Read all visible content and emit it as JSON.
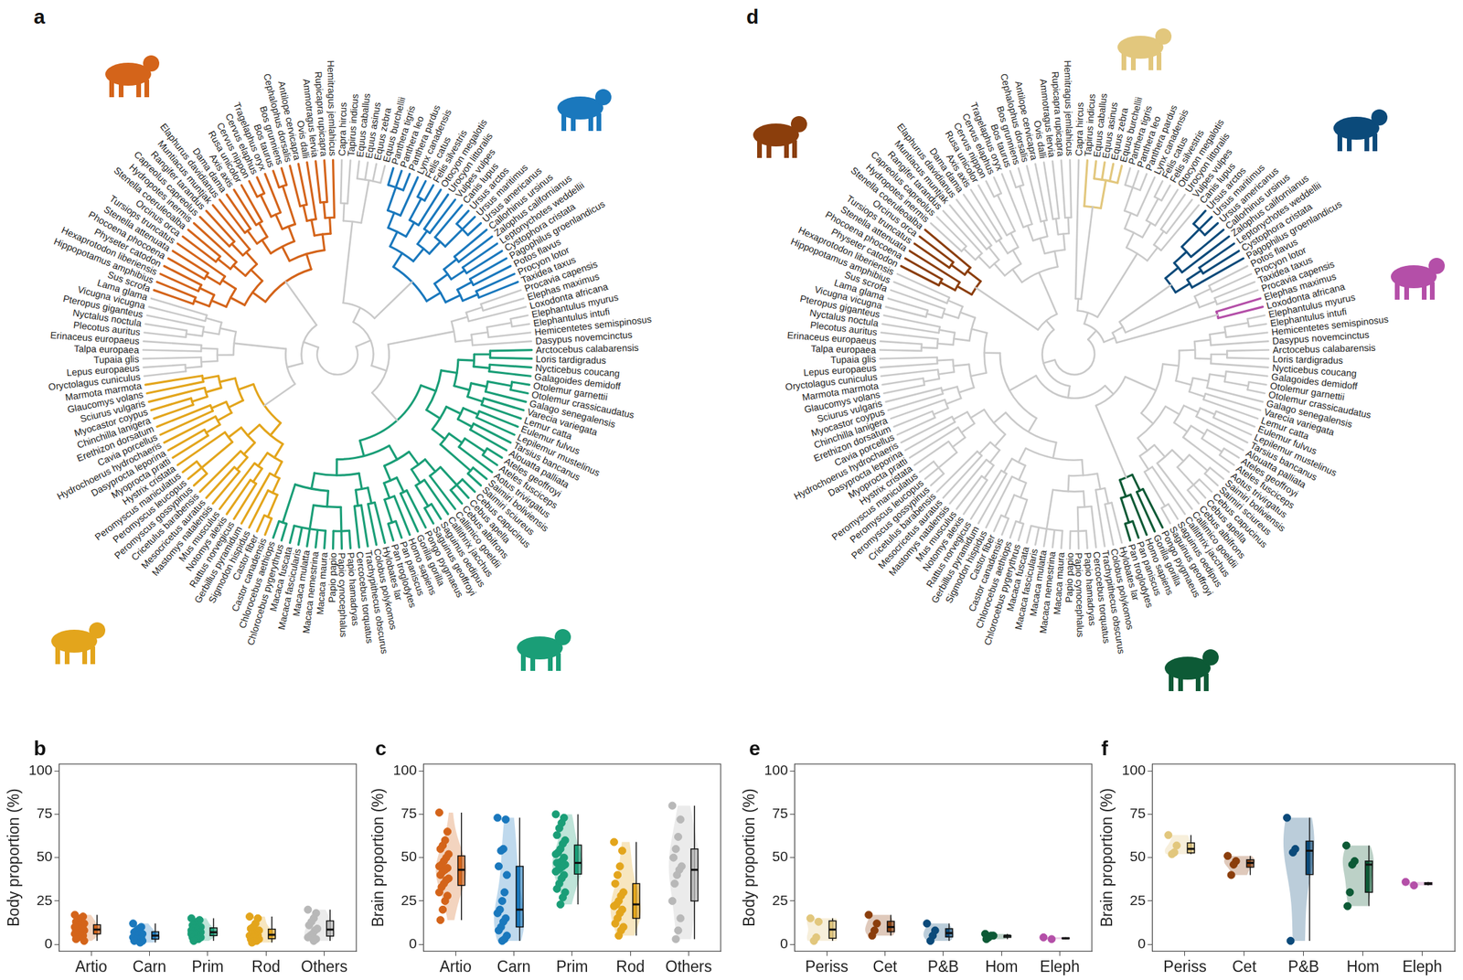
{
  "tree": {
    "species": [
      "Capra hircus",
      "Tapirus indicus",
      "Equus caballus",
      "Equus asinus",
      "Equus zebra",
      "Equus burchellii",
      "Panthera tigris",
      "Panthera leo",
      "Panthera pardus",
      "Lynx canadensis",
      "Felis catus",
      "Felis silvestris",
      "Otocyon megalotis",
      "Urocyon littoralis",
      "Vulpes vulpes",
      "Canis lupus",
      "Ursus arctos",
      "Ursus maritimus",
      "Ursus americanus",
      "Callorhinus ursinus",
      "Zalophus californianus",
      "Leptonychotes weddellii",
      "Cystophora cristata",
      "Pagophilus groenlandicus",
      "Potos flavus",
      "Procyon lotor",
      "Taxidea taxus",
      "Procavia capensis",
      "Elephas maximus",
      "Loxodonta africana",
      "Elephantulus myurus",
      "Elephantulus intufi",
      "Hemicentetes semispinosus",
      "Dasypus novemcinctus",
      "Arctocebus calabarensis",
      "Loris tardigradus",
      "Nycticebus coucang",
      "Galagoides demidoff",
      "Otolemur garnettii",
      "Otolemur crassicaudatus",
      "Galago senegalensis",
      "Varecia variegata",
      "Lemur catta",
      "Eulemur fulvus",
      "Lepilemur mustelinus",
      "Tarsius bancanus",
      "Alouatta palliata",
      "Ateles geoffroyi",
      "Ateles fusciceps",
      "Aotus trivirgatus",
      "Saimiri boliviensis",
      "Saimiri sciureus",
      "Cebus capucinus",
      "Cebus apella",
      "Cebus albifrons",
      "Callimico goeldii",
      "Callithrix jacchus",
      "Saguinus oedipus",
      "Saguinus geoffroyi",
      "Pongo pygmaeus",
      "Gorilla gorilla",
      "Homo sapiens",
      "Pan paniscus",
      "Pan troglodytes",
      "Hylobates lar",
      "Colobus polykomos",
      "Trachypithecus obscurus",
      "Cercocebus torquatus",
      "Papio hamadryas",
      "Papio cynocephalus",
      "Papio papio",
      "Macaca maura",
      "Macaca nemestrina",
      "Macaca mulatta",
      "Macaca fascicularis",
      "Macaca fuscata",
      "Chlorocebus pygerythrus",
      "Chlorocebus aethiops",
      "Castor canadensis",
      "Castor fiber",
      "Sigmodon hispidus",
      "Gerbillus pyramidum",
      "Rattus norvegicus",
      "Notomys alexis",
      "Mus musculus",
      "Mastomys natalensis",
      "Mesocricetus auratus",
      "Cricetulus barabensis",
      "Peromyscus gossypinus",
      "Peromyscus leucopus",
      "Peromyscus maniculatus",
      "Hystrix cristata",
      "Myoprocta pratti",
      "Dasyprocta leporina",
      "Hydrochoerus hydrochaeris",
      "Cavia porcellus",
      "Erethizon dorsatum",
      "Chinchilla lanigera",
      "Myocastor coypus",
      "Sciurus vulgaris",
      "Glaucomys volans",
      "Marmota marmota",
      "Oryctolagus cuniculus",
      "Lepus europaeus",
      "Tupaia glis",
      "Talpa europaea",
      "Erinaceus europaeus",
      "Plecotus auritus",
      "Nyctalus noctula",
      "Pteropus giganteus",
      "Vicugna vicugna",
      "Lama glama",
      "Sus scrofa",
      "Hippopotamus amphibius",
      "Hexaprotodon liberiensis",
      "Physeter catodon",
      "Phocoena phocoena",
      "Stenella attenuata",
      "Tursiops truncatus",
      "Orcinus orca",
      "Stenella coeruleoalba",
      "Hydropotes inermis",
      "Capreolus capreolus",
      "Rangifer tarandus",
      "Muntiacus muntjak",
      "Elaphurus davidianus",
      "Dama dama",
      "Axis axis",
      "Rusa unicolor",
      "Cervus nippon",
      "Cervus elaphus",
      "Tragelaphus oryx",
      "Bos taurus",
      "Bos grunniens",
      "Cephalophus dorsalis",
      "Antilope cervicapra",
      "Ovis dalli",
      "Ammotragus lervia",
      "Rupicapra rupicapra",
      "Hemitragus jemlahicus"
    ]
  },
  "tree_panels": [
    {
      "panel_label": "a",
      "clades": [
        {
          "color": "#d4641a",
          "from": "Sus scrofa",
          "to": "Hemitragus jemlahicus"
        },
        {
          "color": "#1a78bd",
          "from": "Panthera tigris",
          "to": "Taxidea taxus"
        },
        {
          "color": "#1a9e77",
          "from": "Arctocebus calabarensis",
          "to": "Chlorocebus aethiops"
        },
        {
          "color": "#e3a51c",
          "from": "Castor canadensis",
          "to": "Marmota marmota"
        }
      ]
    },
    {
      "panel_label": "d",
      "clades": [
        {
          "color": "#e2c77d",
          "from": "Tapirus indicus",
          "to": "Equus burchellii"
        },
        {
          "color": "#8b3e0c",
          "from": "Physeter catodon",
          "to": "Stenella coeruleoalba"
        },
        {
          "color": "#0b4a7a",
          "from": "Ursus arctos",
          "to": "Pagophilus groenlandicus"
        },
        {
          "color": "#0d5a36",
          "from": "Pongo pygmaeus",
          "to": "Pan troglodytes"
        },
        {
          "color": "#b44fa8",
          "from": "Elephas maximus",
          "to": "Loxodonta africana"
        }
      ]
    }
  ],
  "chart_data": [
    {
      "type": "box",
      "panel_label": "b",
      "ylabel": "Body proportion (%)",
      "categories": [
        "Artio",
        "Carn",
        "Prim",
        "Rod",
        "Others"
      ],
      "colors": [
        "#d4641a",
        "#1a78bd",
        "#1a9e77",
        "#e3a51c",
        "#b8b8b8"
      ],
      "values": [
        [
          17,
          16,
          15,
          14,
          13,
          12,
          11,
          11,
          10,
          10,
          9,
          9,
          8,
          8,
          8,
          7,
          7,
          6,
          6,
          5,
          5,
          4,
          3,
          2
        ],
        [
          12,
          10,
          9,
          8,
          7,
          6,
          6,
          5,
          5,
          4,
          4,
          3,
          3,
          2,
          2,
          1
        ],
        [
          15,
          14,
          13,
          12,
          11,
          10,
          10,
          9,
          9,
          8,
          8,
          8,
          7,
          7,
          7,
          7,
          6,
          6,
          6,
          5,
          5,
          5,
          4,
          4,
          3,
          3,
          2
        ],
        [
          16,
          15,
          12,
          10,
          9,
          8,
          7,
          6,
          6,
          5,
          5,
          4,
          4,
          3,
          3,
          2,
          2,
          1
        ],
        [
          20,
          18,
          15,
          13,
          11,
          9,
          8,
          6,
          5,
          4,
          3,
          2
        ]
      ],
      "ylim": [
        -4,
        104
      ],
      "yticks": [
        0,
        25,
        50,
        75,
        100
      ],
      "grid": false,
      "marker": "circle"
    },
    {
      "type": "box",
      "panel_label": "c",
      "ylabel": "Brain proportion (%)",
      "categories": [
        "Artio",
        "Carn",
        "Prim",
        "Rod",
        "Others"
      ],
      "colors": [
        "#d4641a",
        "#1a78bd",
        "#1a9e77",
        "#e3a51c",
        "#b8b8b8"
      ],
      "values": [
        [
          76,
          65,
          60,
          57,
          55,
          52,
          50,
          48,
          46,
          45,
          44,
          43,
          42,
          40,
          38,
          37,
          35,
          33,
          30,
          28,
          25,
          20,
          14
        ],
        [
          73,
          72,
          55,
          54,
          45,
          40,
          30,
          25,
          20,
          18,
          15,
          13,
          10,
          8,
          5,
          3,
          2
        ],
        [
          75,
          73,
          70,
          67,
          63,
          60,
          58,
          55,
          53,
          52,
          50,
          48,
          47,
          47,
          46,
          45,
          44,
          43,
          42,
          40,
          38,
          35,
          32,
          30,
          27,
          23
        ],
        [
          59,
          54,
          45,
          40,
          35,
          30,
          28,
          25,
          23,
          22,
          20,
          18,
          15,
          12,
          10,
          8,
          5
        ],
        [
          80,
          72,
          62,
          55,
          50,
          45,
          43,
          40,
          35,
          25,
          15,
          8,
          3
        ]
      ],
      "ylim": [
        -4,
        104
      ],
      "yticks": [
        0,
        25,
        50,
        75,
        100
      ],
      "grid": false,
      "marker": "circle"
    },
    {
      "type": "box",
      "panel_label": "e",
      "ylabel": "Body proportion (%)",
      "categories": [
        "Periss",
        "Cet",
        "P&B",
        "Hom",
        "Eleph"
      ],
      "colors": [
        "#e2c77d",
        "#8b3e0c",
        "#0b4a7a",
        "#0d5a36",
        "#b44fa8"
      ],
      "values": [
        [
          15,
          13,
          4,
          2
        ],
        [
          17,
          12,
          8,
          5
        ],
        [
          12,
          8,
          5,
          2
        ],
        [
          6,
          5,
          5,
          4,
          3
        ],
        [
          4,
          3
        ]
      ],
      "ylim": [
        -4,
        104
      ],
      "yticks": [
        0,
        25,
        50,
        75,
        100
      ],
      "grid": false,
      "marker": "circle"
    },
    {
      "type": "box",
      "panel_label": "f",
      "ylabel": "Brain proportion (%)",
      "categories": [
        "Periss",
        "Cet",
        "P&B",
        "Hom",
        "Eleph"
      ],
      "colors": [
        "#e2c77d",
        "#8b3e0c",
        "#0b4a7a",
        "#0d5a36",
        "#b44fa8"
      ],
      "values": [
        [
          63,
          57,
          53,
          52
        ],
        [
          51,
          48,
          46,
          40
        ],
        [
          73,
          55,
          53,
          2
        ],
        [
          57,
          48,
          46,
          30,
          22
        ],
        [
          36,
          34
        ]
      ],
      "ylim": [
        -4,
        104
      ],
      "yticks": [
        0,
        25,
        50,
        75,
        100
      ],
      "grid": false,
      "marker": "circle"
    }
  ]
}
